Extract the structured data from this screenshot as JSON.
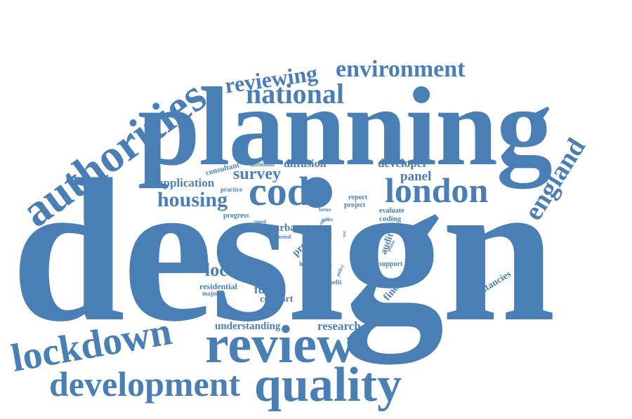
{
  "color": "#4a7fb5",
  "words": {
    "design": "design",
    "planning": "planning",
    "review": "review",
    "quality": "quality",
    "authorities": "authorities",
    "lockdown": "lockdown",
    "development": "development",
    "london": "london",
    "code": "code",
    "national": "national",
    "environment": "environment",
    "reviewing": "reviewing",
    "england": "england",
    "housing": "housing",
    "survey": "survey",
    "application": "application",
    "diffusion": "diffusion",
    "developer": "developer",
    "panel": "panel",
    "local": "local",
    "future": "future",
    "comfort": "comfort",
    "residential": "residential",
    "majority": "majority",
    "understanding": "understanding",
    "research": "research",
    "consultancies": "consultancies",
    "finding": "finding",
    "audit": "audit",
    "support": "support",
    "evaluate": "evaluate",
    "coding": "coding",
    "report": "report",
    "project": "project",
    "better": "better",
    "progress": "progress",
    "practice": "practice",
    "consultant": "consultant",
    "intention": "intention",
    "urban": "urban",
    "period": "period",
    "proc": "proc",
    "nppf": "nppf",
    "place": "place",
    "speed": "speed",
    "order": "order",
    "effect": "effect",
    "more": "more",
    "have": "have",
    "home": "home",
    "third": "third",
    "fared": "fared",
    "policy": "policy",
    "benefit": "benefit",
    "phase": "phase",
    "test": "test",
    "rest": "rest",
    "view": "view"
  }
}
